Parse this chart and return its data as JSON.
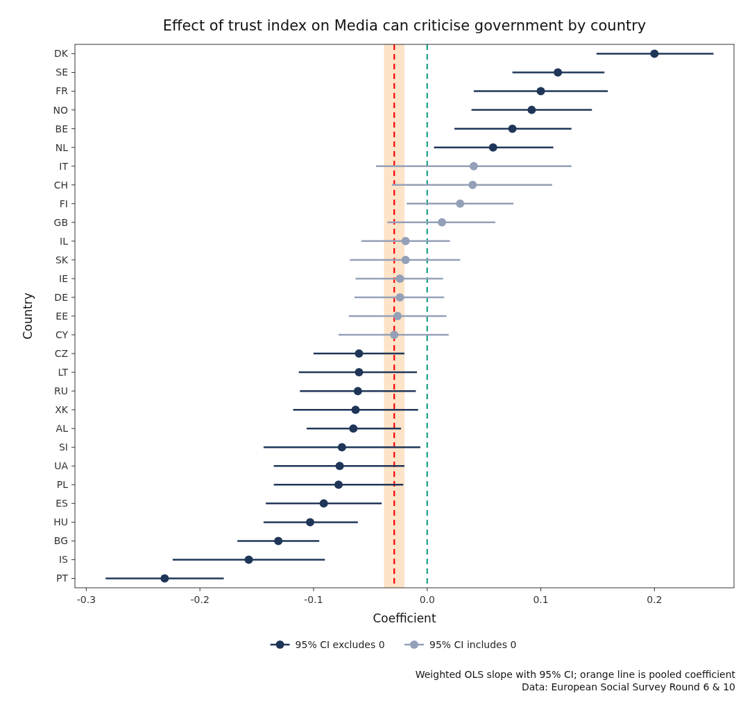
{
  "chart_data": {
    "type": "scatter",
    "orientation": "horizontal",
    "title": "Effect of trust index on Media can criticise government by country",
    "xlabel": "Coefficient",
    "ylabel": "Country",
    "categories": [
      "DK",
      "SE",
      "FR",
      "NO",
      "BE",
      "NL",
      "IT",
      "CH",
      "FI",
      "GB",
      "IL",
      "SK",
      "IE",
      "DE",
      "EE",
      "CY",
      "CZ",
      "LT",
      "RU",
      "XK",
      "AL",
      "SI",
      "UA",
      "PL",
      "ES",
      "HU",
      "BG",
      "IS",
      "PT"
    ],
    "xlim": [
      -0.31,
      0.27
    ],
    "xticks": [
      {
        "value": -0.3,
        "label": "-0.3"
      },
      {
        "value": -0.2,
        "label": "-0.2"
      },
      {
        "value": -0.1,
        "label": "-0.1"
      },
      {
        "value": 0,
        "label": "0.0"
      },
      {
        "value": 0.1,
        "label": "0.1"
      },
      {
        "value": 0.2,
        "label": "0.2"
      }
    ],
    "grid": false,
    "legend": "bottom",
    "marker": "circle",
    "series": [
      {
        "name": "95% CI excludes 0",
        "color": "#1f3658",
        "values": [
          0.2,
          0.115,
          0.1,
          0.092,
          0.075,
          0.058,
          null,
          null,
          null,
          null,
          null,
          null,
          null,
          null,
          null,
          null,
          -0.06,
          -0.06,
          -0.061,
          -0.063,
          -0.065,
          -0.075,
          -0.077,
          -0.078,
          -0.091,
          -0.103,
          -0.131,
          -0.157,
          -0.231
        ],
        "errors": [
          [
            0.149,
            0.252
          ],
          [
            0.075,
            0.156
          ],
          [
            0.041,
            0.159
          ],
          [
            0.039,
            0.145
          ],
          [
            0.024,
            0.127
          ],
          [
            0.006,
            0.111
          ],
          null,
          null,
          null,
          null,
          null,
          null,
          null,
          null,
          null,
          null,
          [
            -0.1,
            -0.02
          ],
          [
            -0.113,
            -0.009
          ],
          [
            -0.112,
            -0.01
          ],
          [
            -0.118,
            -0.008
          ],
          [
            -0.106,
            -0.023
          ],
          [
            -0.144,
            -0.006
          ],
          [
            -0.135,
            -0.02
          ],
          [
            -0.135,
            -0.021
          ],
          [
            -0.142,
            -0.04
          ],
          [
            -0.144,
            -0.061
          ],
          [
            -0.167,
            -0.095
          ],
          [
            -0.224,
            -0.09
          ],
          [
            -0.283,
            -0.179
          ]
        ]
      },
      {
        "name": "95% CI includes 0",
        "color": "#94a0b8",
        "values": [
          null,
          null,
          null,
          null,
          null,
          null,
          0.041,
          0.04,
          0.029,
          0.013,
          -0.019,
          -0.019,
          -0.024,
          -0.024,
          -0.026,
          -0.029,
          null,
          null,
          null,
          null,
          null,
          null,
          null,
          null,
          null,
          null,
          null,
          null,
          null
        ],
        "errors": [
          null,
          null,
          null,
          null,
          null,
          null,
          [
            -0.045,
            0.127
          ],
          [
            -0.031,
            0.11
          ],
          [
            -0.018,
            0.076
          ],
          [
            -0.035,
            0.06
          ],
          [
            -0.058,
            0.02
          ],
          [
            -0.068,
            0.029
          ],
          [
            -0.063,
            0.014
          ],
          [
            -0.064,
            0.015
          ],
          [
            -0.069,
            0.017
          ],
          [
            -0.078,
            0.019
          ],
          null,
          null,
          null,
          null,
          null,
          null,
          null,
          null,
          null,
          null,
          null,
          null,
          null
        ]
      }
    ],
    "ref_lines": [
      {
        "axis": "x",
        "value": -0.029,
        "color": "#ff0000",
        "line_style": "dashed"
      },
      {
        "axis": "x",
        "value": 0,
        "color": "#1a9e86",
        "line_style": "dashed"
      }
    ],
    "bands": [
      {
        "axis": "x",
        "from": -0.038,
        "to": -0.02,
        "color": "#fde3c8"
      }
    ],
    "annotations": [
      "Weighted OLS slope with 95% CI; orange line is pooled coefficient",
      "Data: European Social Survey Round 6 & 10"
    ]
  }
}
